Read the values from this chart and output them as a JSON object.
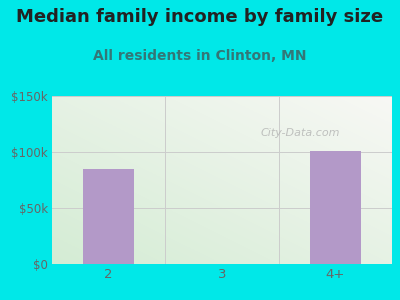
{
  "title": "Median family income by family size",
  "subtitle": "All residents in Clinton, MN",
  "categories": [
    "2",
    "3",
    "4+"
  ],
  "values": [
    85000,
    0,
    101000
  ],
  "bar_color": "#b399c8",
  "fig_bg_color": "#00e8e8",
  "ylim": [
    0,
    150000
  ],
  "yticks": [
    0,
    50000,
    100000,
    150000
  ],
  "ytick_labels": [
    "$0",
    "$50k",
    "$100k",
    "$150k"
  ],
  "title_fontsize": 13,
  "subtitle_fontsize": 10,
  "title_color": "#222222",
  "subtitle_color": "#337777",
  "tick_color": "#666666",
  "watermark": "City-Data.com",
  "grid_color": "#cccccc",
  "plot_bg_left": "#d4ecd4",
  "plot_bg_right": "#f5f5f5"
}
